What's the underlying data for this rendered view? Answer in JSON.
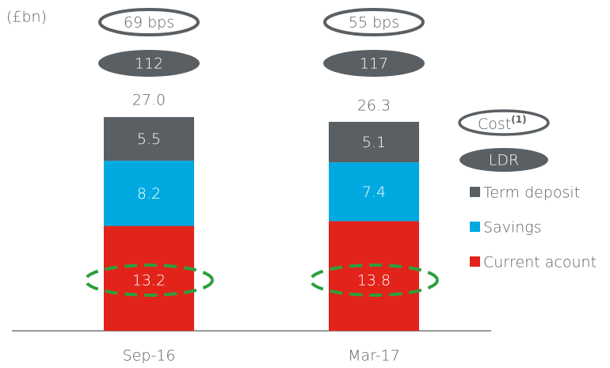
{
  "chart_data": {
    "type": "bar",
    "unit_label": "(£bn)",
    "categories": [
      "Sep-16",
      "Mar-17"
    ],
    "series": [
      {
        "name": "Current acount",
        "color": "#e2231a",
        "values": [
          13.2,
          13.8
        ]
      },
      {
        "name": "Savings",
        "color": "#00a9e0",
        "values": [
          8.2,
          7.4
        ]
      },
      {
        "name": "Term deposit",
        "color": "#5a5f63",
        "values": [
          5.5,
          5.1
        ]
      }
    ],
    "totals": [
      27,
      26.3
    ],
    "total_labels": [
      "27.0",
      "26.3"
    ],
    "cost": [
      "69 bps",
      "55 bps"
    ],
    "ldr": [
      112,
      117
    ],
    "cost_legend": "Cost",
    "cost_legend_note": "(1)",
    "ldr_legend": "LDR"
  }
}
